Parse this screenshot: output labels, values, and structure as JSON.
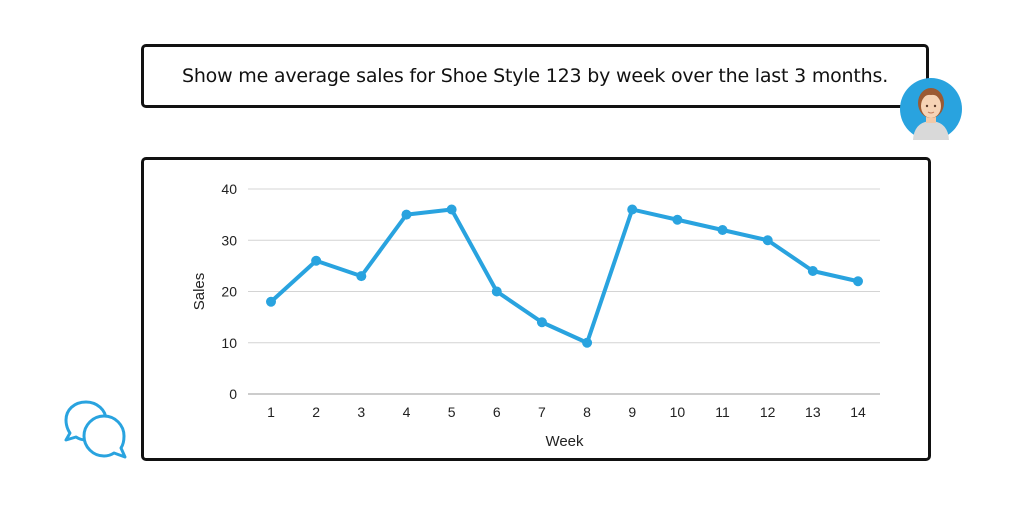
{
  "prompt": {
    "text": "Show me average sales for Shoe Style 123 by week over the last 3 months."
  },
  "icons": {
    "avatar": "user-avatar-icon",
    "logo": "chat-bubbles-icon"
  },
  "colors": {
    "accent": "#29a3df",
    "border": "#111111",
    "grid": "#d4d4d4"
  },
  "chart_data": {
    "type": "line",
    "title": "",
    "xlabel": "Week",
    "ylabel": "Sales",
    "x": [
      1,
      2,
      3,
      4,
      5,
      6,
      7,
      8,
      9,
      10,
      11,
      12,
      13,
      14
    ],
    "y": [
      18,
      26,
      23,
      35,
      36,
      20,
      14,
      10,
      36,
      34,
      32,
      30,
      24,
      22
    ],
    "ylim": [
      0,
      40
    ],
    "yticks": [
      0,
      10,
      20,
      30,
      40
    ],
    "grid": true,
    "legend": "none",
    "color": "#29a3df"
  }
}
